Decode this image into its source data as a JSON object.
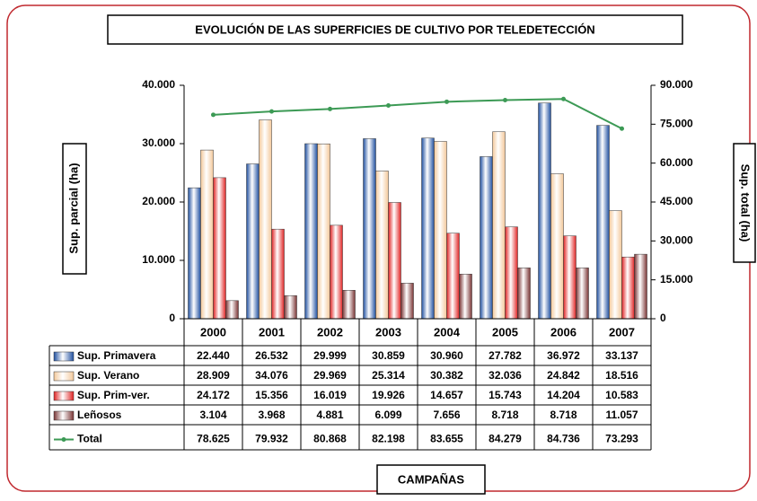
{
  "chart_data": {
    "type": "bar",
    "title": "EVOLUCIÓN DE LAS SUPERFICIES DE CULTIVO POR TELEDETECCIÓN",
    "ylabel": "Sup. parcial  (ha)",
    "y2label": "Sup. total (ha)",
    "xlabel": "CAMPAÑAS",
    "categories": [
      "2000",
      "2001",
      "2002",
      "2003",
      "2004",
      "2005",
      "2006",
      "2007"
    ],
    "series": [
      {
        "name": "Sup. Primavera",
        "color": "#1f4fa0",
        "values": [
          22440,
          26532,
          29999,
          30859,
          30960,
          27782,
          36972,
          33137
        ],
        "value_labels": [
          "22.440",
          "26.532",
          "29.999",
          "30.859",
          "30.960",
          "27.782",
          "36.972",
          "33.137"
        ]
      },
      {
        "name": "Sup. Verano",
        "color": "#f3c89a",
        "values": [
          28909,
          34076,
          29969,
          25314,
          30382,
          32036,
          24842,
          18516
        ],
        "value_labels": [
          "28.909",
          "34.076",
          "29.969",
          "25.314",
          "30.382",
          "32.036",
          "24.842",
          "18.516"
        ]
      },
      {
        "name": "Sup. Prim-ver.",
        "color": "#e02424",
        "values": [
          24172,
          15356,
          16019,
          19926,
          14657,
          15743,
          14204,
          10583
        ],
        "value_labels": [
          "24.172",
          "15.356",
          "16.019",
          "19.926",
          "14.657",
          "15.743",
          "14.204",
          "10.583"
        ]
      },
      {
        "name": "Leñosos",
        "color": "#7a3434",
        "values": [
          3104,
          3968,
          4881,
          6099,
          7656,
          8718,
          8718,
          11057
        ],
        "value_labels": [
          "3.104",
          "3.968",
          "4.881",
          "6.099",
          "7.656",
          "8.718",
          "8.718",
          "11.057"
        ]
      },
      {
        "name": "Total",
        "color": "#3c9a55",
        "axis": "y2",
        "values": [
          78625,
          79932,
          80868,
          82198,
          83655,
          84279,
          84736,
          73293
        ],
        "value_labels": [
          "78.625",
          "79.932",
          "80.868",
          "82.198",
          "83.655",
          "84.279",
          "84.736",
          "73.293"
        ]
      }
    ],
    "ylim": [
      0,
      40000
    ],
    "yticks": [
      0,
      {
        "value": 10000,
        "label": "10.000"
      },
      {
        "value": 20000,
        "label": "20.000"
      },
      {
        "value": 30000,
        "label": "30.000"
      },
      {
        "value": 40000,
        "label": "40.000"
      }
    ],
    "y2lim": [
      0,
      90000
    ],
    "y2ticks": [
      0,
      {
        "value": 15000,
        "label": "15.000"
      },
      {
        "value": 30000,
        "label": "30.000"
      },
      {
        "value": 45000,
        "label": "45.000"
      },
      {
        "value": 60000,
        "label": "60.000"
      },
      {
        "value": 75000,
        "label": "75.000"
      },
      {
        "value": 90000,
        "label": "90.000"
      }
    ]
  }
}
